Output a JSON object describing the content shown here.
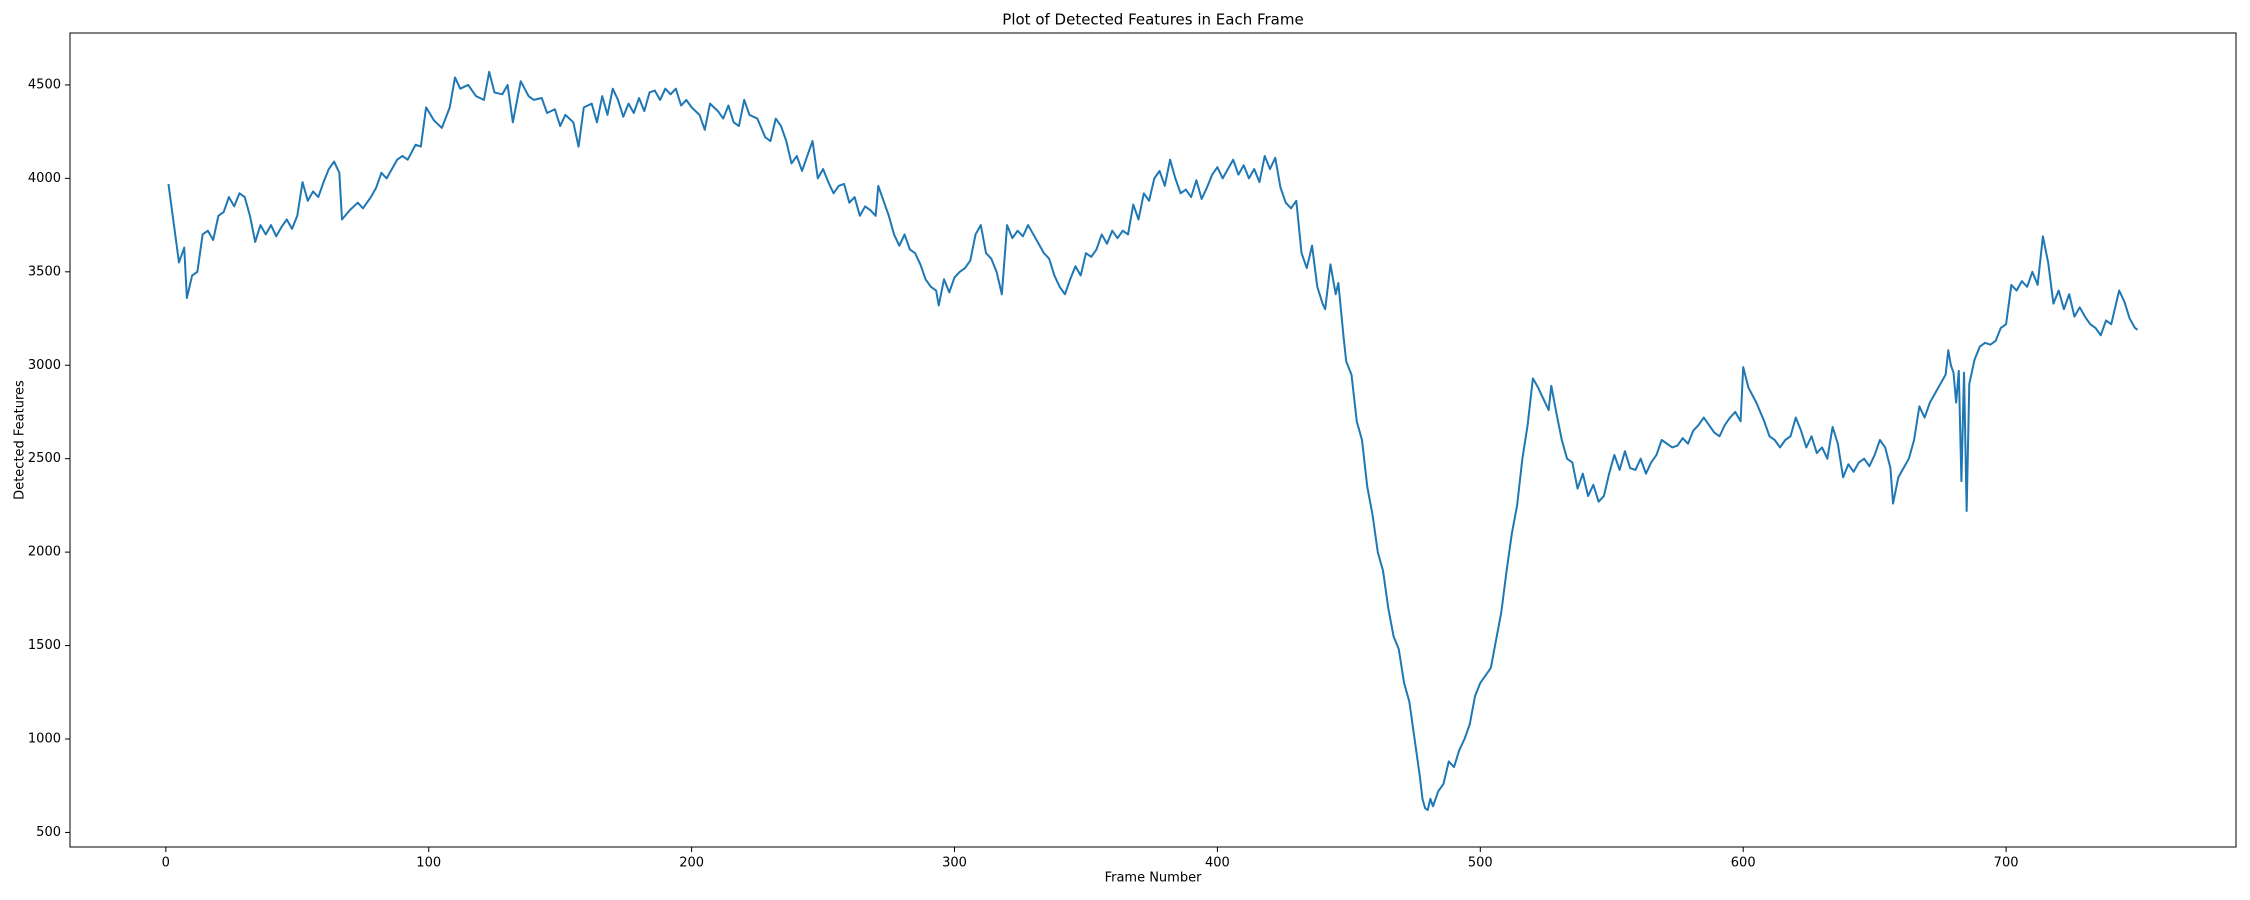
{
  "chart_data": {
    "type": "line",
    "title": "Plot of Detected Features in Each Frame",
    "xlabel": "Frame Number",
    "ylabel": "Detected Features",
    "color": "#1f77b4",
    "xlim": [
      -36.45,
      787.45
    ],
    "ylim": [
      422,
      4778
    ],
    "xticks": [
      0,
      100,
      200,
      300,
      400,
      500,
      600,
      700
    ],
    "yticks": [
      500,
      1000,
      1500,
      2000,
      2500,
      3000,
      3500,
      4000,
      4500
    ],
    "grid": false,
    "x": [
      1,
      5,
      7,
      8,
      10,
      12,
      14,
      16,
      18,
      20,
      22,
      24,
      26,
      28,
      30,
      32,
      34,
      36,
      38,
      40,
      42,
      44,
      46,
      48,
      50,
      52,
      54,
      56,
      58,
      60,
      62,
      64,
      66,
      67,
      70,
      73,
      75,
      78,
      80,
      82,
      84,
      86,
      88,
      90,
      92,
      95,
      97,
      99,
      102,
      105,
      108,
      110,
      112,
      115,
      118,
      121,
      123,
      125,
      128,
      130,
      132,
      135,
      138,
      140,
      143,
      145,
      148,
      150,
      152,
      155,
      157,
      159,
      162,
      164,
      166,
      168,
      170,
      172,
      174,
      176,
      178,
      180,
      182,
      184,
      186,
      188,
      190,
      192,
      194,
      196,
      198,
      200,
      203,
      205,
      207,
      210,
      212,
      214,
      216,
      218,
      220,
      222,
      225,
      228,
      230,
      232,
      234,
      236,
      238,
      240,
      242,
      244,
      246,
      248,
      250,
      252,
      254,
      256,
      258,
      260,
      262,
      264,
      266,
      268,
      270,
      271,
      273,
      275,
      277,
      279,
      281,
      283,
      285,
      287,
      289,
      291,
      293,
      294,
      296,
      298,
      300,
      302,
      304,
      306,
      308,
      310,
      312,
      314,
      316,
      318,
      320,
      322,
      324,
      326,
      328,
      330,
      332,
      334,
      336,
      338,
      340,
      342,
      344,
      346,
      348,
      350,
      352,
      354,
      356,
      358,
      360,
      362,
      364,
      366,
      368,
      370,
      372,
      374,
      376,
      378,
      380,
      382,
      384,
      386,
      388,
      390,
      392,
      394,
      396,
      398,
      400,
      402,
      404,
      406,
      408,
      410,
      412,
      414,
      416,
      418,
      420,
      422,
      424,
      426,
      428,
      430,
      432,
      434,
      436,
      438,
      440,
      441,
      443,
      445,
      446,
      448,
      449,
      451,
      453,
      455,
      457,
      459,
      461,
      463,
      465,
      467,
      469,
      471,
      473,
      475,
      477,
      478,
      479,
      480,
      481,
      482,
      484,
      486,
      488,
      490,
      492,
      494,
      496,
      498,
      500,
      502,
      504,
      506,
      508,
      510,
      512,
      514,
      516,
      518,
      520,
      522,
      524,
      526,
      527,
      529,
      531,
      533,
      535,
      537,
      539,
      541,
      543,
      545,
      547,
      549,
      551,
      553,
      555,
      557,
      559,
      561,
      563,
      565,
      567,
      569,
      571,
      573,
      575,
      577,
      579,
      581,
      583,
      585,
      587,
      589,
      591,
      593,
      595,
      597,
      599,
      600,
      602,
      605,
      608,
      610,
      612,
      614,
      616,
      618,
      620,
      622,
      624,
      626,
      628,
      630,
      632,
      634,
      636,
      638,
      640,
      642,
      644,
      646,
      648,
      650,
      652,
      654,
      656,
      657,
      659,
      661,
      663,
      665,
      667,
      669,
      671,
      673,
      675,
      677,
      678,
      679,
      680,
      681,
      682,
      683,
      684,
      685,
      686,
      688,
      690,
      692,
      694,
      696,
      698,
      700,
      702,
      704,
      706,
      708,
      710,
      712,
      714,
      716,
      718,
      720,
      722,
      724,
      726,
      728,
      730,
      732,
      734,
      736,
      738,
      740,
      743,
      745,
      747,
      749,
      750
    ],
    "values": [
      3970,
      3550,
      3630,
      3360,
      3480,
      3500,
      3700,
      3720,
      3670,
      3800,
      3820,
      3900,
      3850,
      3920,
      3900,
      3800,
      3660,
      3750,
      3700,
      3750,
      3690,
      3740,
      3780,
      3730,
      3800,
      3980,
      3880,
      3930,
      3900,
      3980,
      4050,
      4090,
      4030,
      3780,
      3830,
      3870,
      3840,
      3900,
      3950,
      4030,
      4000,
      4050,
      4100,
      4120,
      4100,
      4180,
      4170,
      4380,
      4310,
      4270,
      4380,
      4540,
      4480,
      4500,
      4440,
      4420,
      4570,
      4460,
      4450,
      4500,
      4300,
      4520,
      4440,
      4420,
      4430,
      4350,
      4370,
      4280,
      4340,
      4300,
      4170,
      4380,
      4400,
      4300,
      4440,
      4340,
      4480,
      4420,
      4330,
      4400,
      4350,
      4430,
      4360,
      4460,
      4470,
      4420,
      4480,
      4450,
      4480,
      4390,
      4420,
      4380,
      4340,
      4260,
      4400,
      4360,
      4320,
      4390,
      4300,
      4280,
      4420,
      4340,
      4320,
      4220,
      4200,
      4320,
      4280,
      4200,
      4080,
      4120,
      4040,
      4120,
      4200,
      4000,
      4050,
      3980,
      3920,
      3960,
      3970,
      3870,
      3900,
      3800,
      3850,
      3830,
      3800,
      3960,
      3880,
      3800,
      3700,
      3640,
      3700,
      3620,
      3600,
      3540,
      3460,
      3420,
      3400,
      3320,
      3460,
      3390,
      3470,
      3500,
      3520,
      3560,
      3700,
      3750,
      3600,
      3570,
      3500,
      3380,
      3750,
      3680,
      3720,
      3690,
      3750,
      3700,
      3650,
      3600,
      3570,
      3480,
      3420,
      3380,
      3460,
      3530,
      3480,
      3600,
      3580,
      3620,
      3700,
      3650,
      3720,
      3680,
      3720,
      3700,
      3860,
      3780,
      3920,
      3880,
      4000,
      4040,
      3960,
      4100,
      4000,
      3920,
      3940,
      3900,
      3990,
      3890,
      3950,
      4020,
      4060,
      4000,
      4050,
      4100,
      4020,
      4070,
      4000,
      4050,
      3980,
      4120,
      4050,
      4110,
      3950,
      3870,
      3840,
      3880,
      3600,
      3520,
      3640,
      3420,
      3330,
      3300,
      3540,
      3380,
      3440,
      3150,
      3020,
      2950,
      2700,
      2600,
      2350,
      2200,
      2000,
      1900,
      1700,
      1550,
      1480,
      1300,
      1200,
      1000,
      800,
      680,
      630,
      620,
      680,
      640,
      720,
      760,
      880,
      850,
      940,
      1000,
      1080,
      1230,
      1300,
      1340,
      1380,
      1530,
      1680,
      1900,
      2100,
      2250,
      2500,
      2680,
      2930,
      2880,
      2820,
      2760,
      2890,
      2740,
      2600,
      2500,
      2480,
      2340,
      2420,
      2300,
      2360,
      2270,
      2300,
      2420,
      2520,
      2440,
      2540,
      2450,
      2440,
      2500,
      2420,
      2480,
      2520,
      2600,
      2580,
      2560,
      2570,
      2610,
      2580,
      2650,
      2680,
      2720,
      2680,
      2640,
      2620,
      2680,
      2720,
      2750,
      2700,
      2990,
      2880,
      2800,
      2700,
      2620,
      2600,
      2560,
      2600,
      2620,
      2720,
      2650,
      2560,
      2620,
      2530,
      2560,
      2500,
      2670,
      2580,
      2400,
      2470,
      2430,
      2480,
      2500,
      2460,
      2520,
      2600,
      2560,
      2450,
      2260,
      2400,
      2450,
      2500,
      2600,
      2780,
      2720,
      2800,
      2850,
      2900,
      2950,
      3080,
      3000,
      2960,
      2800,
      2970,
      2380,
      2960,
      2220,
      2900,
      3030,
      3100,
      3120,
      3110,
      3130,
      3200,
      3220,
      3430,
      3400,
      3450,
      3420,
      3500,
      3430,
      3690,
      3550,
      3330,
      3400,
      3300,
      3380,
      3260,
      3310,
      3260,
      3220,
      3200,
      3160,
      3240,
      3220,
      3400,
      3340,
      3250,
      3200,
      3190
    ]
  }
}
